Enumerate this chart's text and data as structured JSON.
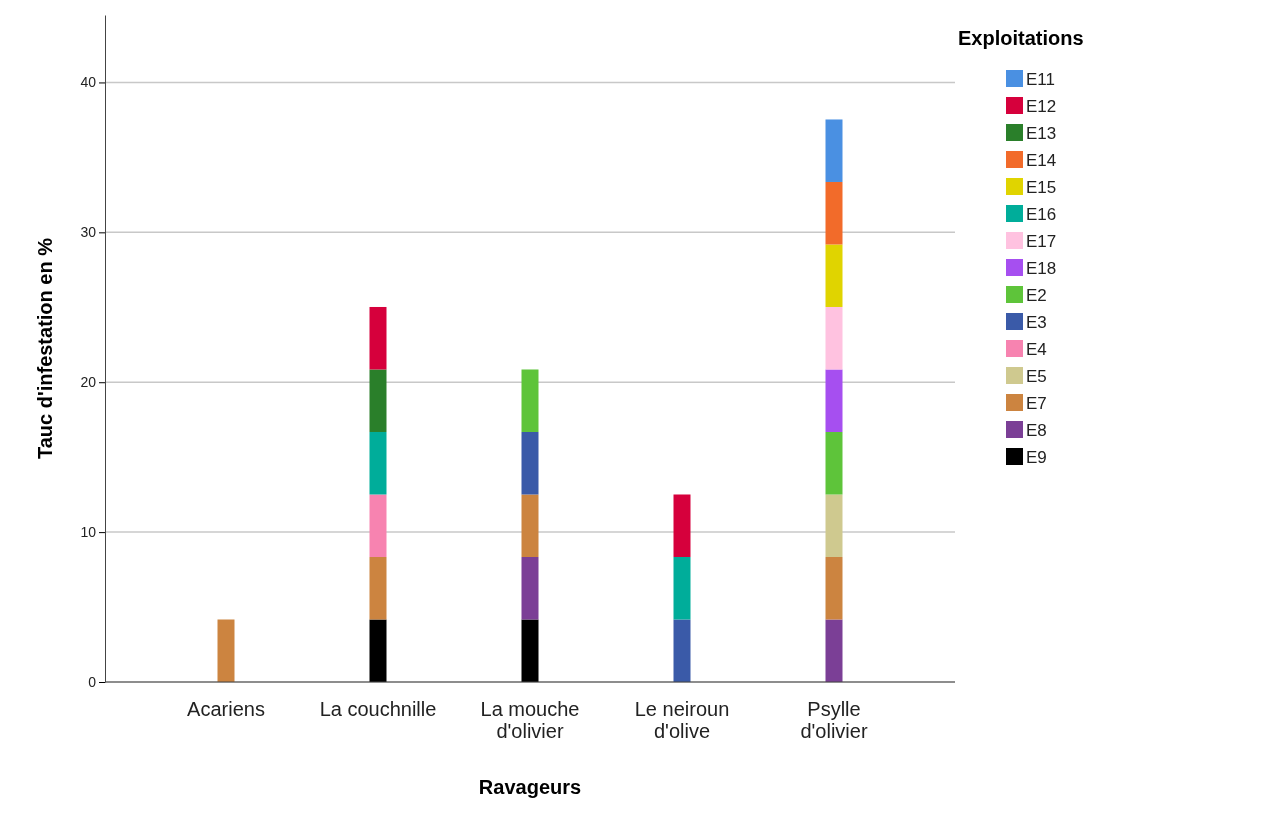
{
  "chart_data": {
    "type": "bar",
    "stacked": true,
    "xlabel": "Ravageurs",
    "ylabel": "Tauc d'infestation en %",
    "legend_title": "Exploitations",
    "legend": "top right",
    "grid": "y",
    "categories": [
      "Acariens",
      "La couchnille",
      "La mouche\nd'olivier",
      "Le neiroun\nd'olive",
      "Psylle\nd'olivier"
    ],
    "ylim": [
      0,
      44.5
    ],
    "yticks": [
      0,
      10,
      20,
      30,
      40
    ],
    "series": [
      {
        "name": "E9",
        "color": "#000000",
        "values": [
          null,
          4.17,
          4.17,
          null,
          null
        ]
      },
      {
        "name": "E8",
        "color": "#7b3f96",
        "values": [
          null,
          null,
          4.17,
          null,
          4.17
        ]
      },
      {
        "name": "E7",
        "color": "#cc8440",
        "values": [
          4.17,
          4.17,
          4.17,
          null,
          4.17
        ]
      },
      {
        "name": "E5",
        "color": "#cfc98f",
        "values": [
          null,
          null,
          null,
          null,
          4.17
        ]
      },
      {
        "name": "E4",
        "color": "#f783b0",
        "values": [
          null,
          4.17,
          null,
          null,
          null
        ]
      },
      {
        "name": "E3",
        "color": "#3a5aa8",
        "values": [
          null,
          null,
          4.17,
          4.17,
          null
        ]
      },
      {
        "name": "E2",
        "color": "#5ec43a",
        "values": [
          null,
          null,
          4.17,
          null,
          4.17
        ]
      },
      {
        "name": "E18",
        "color": "#a64ff0",
        "values": [
          null,
          null,
          null,
          null,
          4.17
        ]
      },
      {
        "name": "E17",
        "color": "#ffc2e0",
        "values": [
          null,
          null,
          null,
          null,
          4.17
        ]
      },
      {
        "name": "E16",
        "color": "#00ad9a",
        "values": [
          null,
          4.17,
          null,
          4.17,
          null
        ]
      },
      {
        "name": "E15",
        "color": "#e0d400",
        "values": [
          null,
          null,
          null,
          null,
          4.17
        ]
      },
      {
        "name": "E14",
        "color": "#f26b2a",
        "values": [
          null,
          null,
          null,
          null,
          4.17
        ]
      },
      {
        "name": "E13",
        "color": "#2a7f2a",
        "values": [
          null,
          4.17,
          null,
          null,
          null
        ]
      },
      {
        "name": "E12",
        "color": "#d6003c",
        "values": [
          null,
          4.17,
          null,
          4.17,
          null
        ]
      },
      {
        "name": "E11",
        "color": "#4a90e2",
        "values": [
          null,
          null,
          null,
          null,
          4.17
        ]
      }
    ]
  }
}
